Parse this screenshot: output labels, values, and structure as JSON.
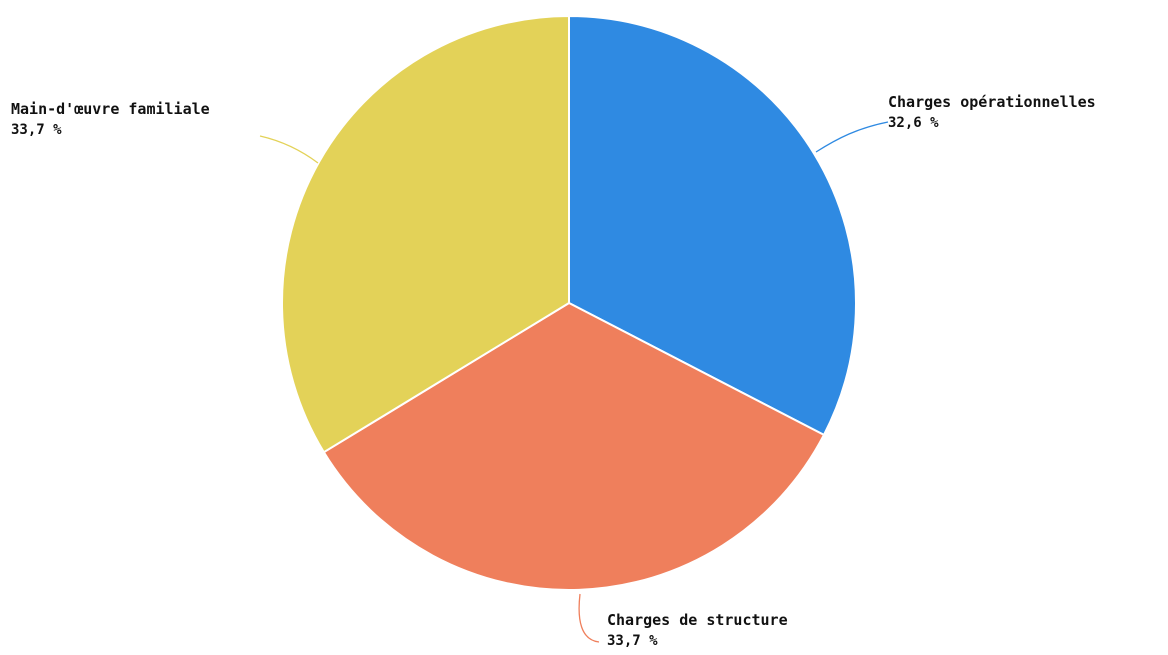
{
  "chart_data": {
    "type": "pie",
    "slices": [
      {
        "label": "Charges opérationnelles",
        "value": 32.6,
        "value_text": "32,6 %",
        "color": "#2f8ae2"
      },
      {
        "label": "Charges de structure",
        "value": 33.7,
        "value_text": "33,7 %",
        "color": "#ef7f5c"
      },
      {
        "label": "Main-d'œuvre familiale",
        "value": 33.7,
        "value_text": "33,7 %",
        "color": "#e3d258"
      }
    ],
    "start": "12 o'clock",
    "direction": "clockwise",
    "legend": "none",
    "labels": "outside with leader lines"
  }
}
